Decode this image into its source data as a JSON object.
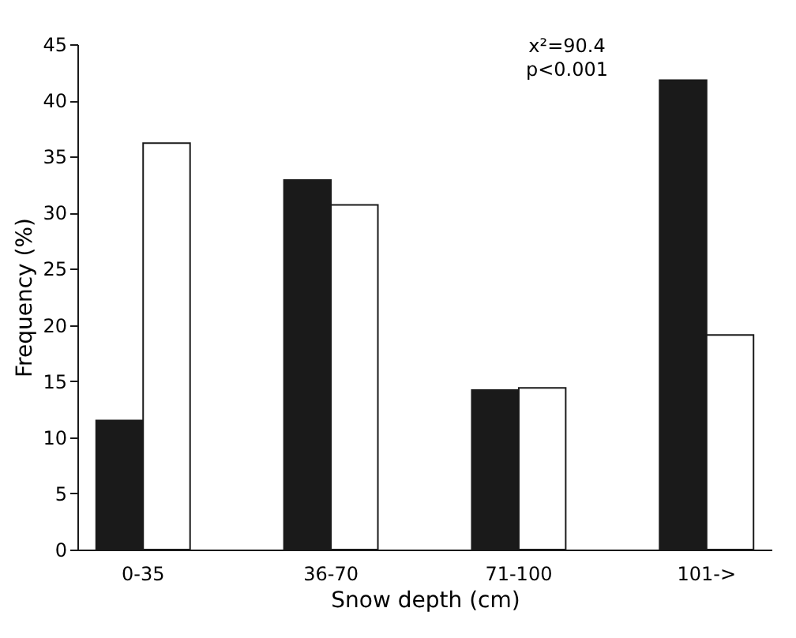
{
  "chart_data": {
    "type": "bar",
    "xlabel": "Snow depth (cm)",
    "ylabel": "Frequency (%)",
    "categories": [
      "0-35",
      "36-70",
      "71-100",
      "101->"
    ],
    "series": [
      {
        "color": "#1a1a1a",
        "values": [
          11.5,
          32.9,
          14.2,
          41.8
        ]
      },
      {
        "color": "#ffffff",
        "values": [
          36.2,
          30.7,
          14.4,
          19.1
        ]
      }
    ],
    "ylim": [
      0,
      45
    ],
    "yticks": [
      0,
      5,
      10,
      15,
      20,
      25,
      30,
      35,
      40,
      45
    ],
    "annotations": [
      "x²=90.4",
      "p<0.001"
    ],
    "grid": false,
    "legend": false
  }
}
